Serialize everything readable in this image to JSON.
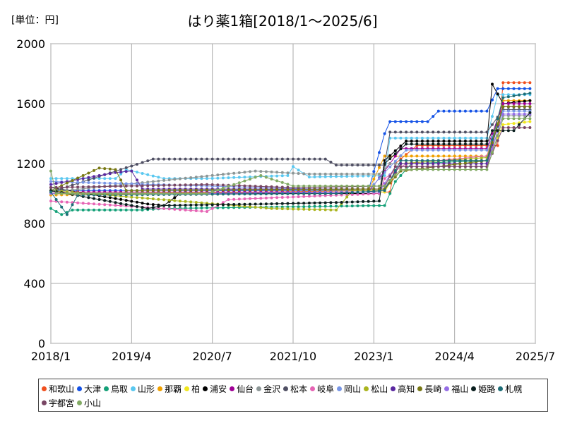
{
  "unit_label": "[単位：円]",
  "title": "はり薬1箱[2018/1～2025/6]",
  "chart_data": {
    "type": "line",
    "title": "はり薬1箱[2018/1～2025/6]",
    "x_start": "2018/1",
    "x_end": "2025/7",
    "xticks": [
      "2018/1",
      "2019/4",
      "2020/7",
      "2021/10",
      "2023/1",
      "2024/4",
      "2025/7"
    ],
    "ylim": [
      0,
      2000
    ],
    "yticks": [
      0,
      400,
      800,
      1200,
      1600,
      2000
    ],
    "grid": true,
    "legend_position": "bottom",
    "series": [
      {
        "name": "和歌山",
        "color": "#f0501e",
        "points": [
          [
            "2018/1",
            1000
          ],
          [
            "2023/4",
            1010
          ],
          [
            "2023/5",
            1200
          ],
          [
            "2023/9",
            1320
          ],
          [
            "2024/12",
            1320
          ],
          [
            "2025/1",
            1740
          ],
          [
            "2025/6",
            1740
          ]
        ]
      },
      {
        "name": "大津",
        "color": "#1452e6",
        "points": [
          [
            "2018/1",
            1020
          ],
          [
            "2022/12",
            1020
          ],
          [
            "2023/3",
            1400
          ],
          [
            "2023/4",
            1480
          ],
          [
            "2023/11",
            1480
          ],
          [
            "2024/1",
            1550
          ],
          [
            "2024/10",
            1550
          ],
          [
            "2024/12",
            1700
          ],
          [
            "2025/6",
            1700
          ]
        ]
      },
      {
        "name": "鳥取",
        "color": "#14a078",
        "points": [
          [
            "2018/1",
            900
          ],
          [
            "2018/3",
            860
          ],
          [
            "2018/5",
            890
          ],
          [
            "2019/6",
            890
          ],
          [
            "2019/10",
            900
          ],
          [
            "2023/3",
            920
          ],
          [
            "2023/5",
            1080
          ],
          [
            "2023/8",
            1200
          ],
          [
            "2024/10",
            1220
          ],
          [
            "2025/1",
            1560
          ],
          [
            "2025/6",
            1560
          ]
        ]
      },
      {
        "name": "山形",
        "color": "#5ac8f0",
        "points": [
          [
            "2018/1",
            1100
          ],
          [
            "2019/1",
            1100
          ],
          [
            "2019/3",
            1160
          ],
          [
            "2019/10",
            1100
          ],
          [
            "2020/6",
            1100
          ],
          [
            "2021/9",
            1120
          ],
          [
            "2021/10",
            1180
          ],
          [
            "2022/1",
            1110
          ],
          [
            "2023/3",
            1120
          ],
          [
            "2023/4",
            1370
          ],
          [
            "2024/10",
            1370
          ],
          [
            "2024/12",
            1660
          ],
          [
            "2025/6",
            1660
          ]
        ]
      },
      {
        "name": "那覇",
        "color": "#f0a000",
        "points": [
          [
            "2018/1",
            990
          ],
          [
            "2022/12",
            1020
          ],
          [
            "2023/3",
            1250
          ],
          [
            "2024/10",
            1250
          ],
          [
            "2025/1",
            1620
          ],
          [
            "2025/6",
            1620
          ]
        ]
      },
      {
        "name": "柏",
        "color": "#f0e61e",
        "points": [
          [
            "2018/1",
            1000
          ],
          [
            "2023/3",
            1010
          ],
          [
            "2023/6",
            1200
          ],
          [
            "2024/10",
            1200
          ],
          [
            "2025/1",
            1460
          ],
          [
            "2025/6",
            1480
          ]
        ]
      },
      {
        "name": "浦安",
        "color": "#000000",
        "points": [
          [
            "2018/1",
            1040
          ],
          [
            "2019/7",
            930
          ],
          [
            "2019/10",
            920
          ],
          [
            "2020/1",
            1000
          ],
          [
            "2023/2",
            1000
          ],
          [
            "2023/3",
            1220
          ],
          [
            "2023/7",
            1350
          ],
          [
            "2024/10",
            1350
          ],
          [
            "2024/11",
            1730
          ],
          [
            "2025/1",
            1600
          ],
          [
            "2025/6",
            1620
          ]
        ]
      },
      {
        "name": "仙台",
        "color": "#a00096",
        "points": [
          [
            "2018/1",
            1010
          ],
          [
            "2022/12",
            1010
          ],
          [
            "2023/3",
            1150
          ],
          [
            "2023/6",
            1300
          ],
          [
            "2024/10",
            1300
          ],
          [
            "2025/1",
            1600
          ],
          [
            "2025/6",
            1600
          ]
        ]
      },
      {
        "name": "金沢",
        "color": "#8c9696",
        "points": [
          [
            "2018/1",
            1010
          ],
          [
            "2021/3",
            1150
          ],
          [
            "2022/1",
            1130
          ],
          [
            "2023/2",
            1130
          ],
          [
            "2023/4",
            1200
          ],
          [
            "2024/10",
            1200
          ],
          [
            "2025/1",
            1520
          ],
          [
            "2025/6",
            1520
          ]
        ]
      },
      {
        "name": "松本",
        "color": "#505064",
        "points": [
          [
            "2018/1",
            1010
          ],
          [
            "2019/8",
            1230
          ],
          [
            "2022/4",
            1230
          ],
          [
            "2022/6",
            1190
          ],
          [
            "2023/3",
            1190
          ],
          [
            "2023/4",
            1410
          ],
          [
            "2024/10",
            1410
          ],
          [
            "2025/1",
            1560
          ],
          [
            "2025/6",
            1560
          ]
        ]
      },
      {
        "name": "岐阜",
        "color": "#e664b4",
        "points": [
          [
            "2018/1",
            950
          ],
          [
            "2020/6",
            880
          ],
          [
            "2020/10",
            960
          ],
          [
            "2023/2",
            1000
          ],
          [
            "2023/3",
            1100
          ],
          [
            "2023/7",
            1200
          ],
          [
            "2024/10",
            1250
          ],
          [
            "2025/1",
            1580
          ],
          [
            "2025/6",
            1580
          ]
        ]
      },
      {
        "name": "岡山",
        "color": "#7896e6",
        "points": [
          [
            "2018/1",
            1080
          ],
          [
            "2022/12",
            1020
          ],
          [
            "2023/3",
            1140
          ],
          [
            "2023/7",
            1290
          ],
          [
            "2024/10",
            1290
          ],
          [
            "2025/1",
            1550
          ],
          [
            "2025/6",
            1550
          ]
        ]
      },
      {
        "name": "松山",
        "color": "#aab41e",
        "points": [
          [
            "2018/1",
            1020
          ],
          [
            "2021/6",
            900
          ],
          [
            "2022/6",
            890
          ],
          [
            "2022/9",
            1020
          ],
          [
            "2023/3",
            1020
          ],
          [
            "2023/6",
            1200
          ],
          [
            "2024/10",
            1240
          ],
          [
            "2025/1",
            1580
          ],
          [
            "2025/6",
            1580
          ]
        ]
      },
      {
        "name": "高知",
        "color": "#5a28a0",
        "points": [
          [
            "2018/1",
            1060
          ],
          [
            "2019/1",
            1140
          ],
          [
            "2019/4",
            1150
          ],
          [
            "2019/6",
            1030
          ],
          [
            "2023/3",
            1030
          ],
          [
            "2023/6",
            1200
          ],
          [
            "2024/10",
            1200
          ],
          [
            "2025/1",
            1580
          ],
          [
            "2025/6",
            1580
          ]
        ]
      },
      {
        "name": "長崎",
        "color": "#787814",
        "points": [
          [
            "2018/1",
            1020
          ],
          [
            "2018/10",
            1170
          ],
          [
            "2019/1",
            1160
          ],
          [
            "2019/3",
            1020
          ],
          [
            "2023/3",
            1030
          ],
          [
            "2023/6",
            1150
          ],
          [
            "2024/10",
            1220
          ],
          [
            "2025/1",
            1580
          ],
          [
            "2025/6",
            1580
          ]
        ]
      },
      {
        "name": "福山",
        "color": "#966ee6",
        "points": [
          [
            "2018/1",
            1000
          ],
          [
            "2020/6",
            1000
          ],
          [
            "2023/2",
            1010
          ],
          [
            "2023/5",
            1180
          ],
          [
            "2024/10",
            1180
          ],
          [
            "2025/1",
            1530
          ],
          [
            "2025/6",
            1530
          ]
        ]
      },
      {
        "name": "姫路",
        "color": "#0a1e1e",
        "points": [
          [
            "2018/1",
            1020
          ],
          [
            "2019/7",
            900
          ],
          [
            "2019/10",
            920
          ],
          [
            "2021/4",
            930
          ],
          [
            "2022/6",
            940
          ],
          [
            "2023/2",
            950
          ],
          [
            "2023/3",
            1200
          ],
          [
            "2023/7",
            1330
          ],
          [
            "2024/10",
            1330
          ],
          [
            "2024/11",
            1420
          ],
          [
            "2025/3",
            1420
          ],
          [
            "2025/6",
            1540
          ]
        ]
      },
      {
        "name": "札幌",
        "color": "#1e6e78",
        "points": [
          [
            "2018/1",
            1010
          ],
          [
            "2018/4",
            860
          ],
          [
            "2018/6",
            990
          ],
          [
            "2022/6",
            1000
          ],
          [
            "2023/3",
            1020
          ],
          [
            "2023/6",
            1220
          ],
          [
            "2024/10",
            1220
          ],
          [
            "2025/1",
            1640
          ],
          [
            "2025/6",
            1670
          ]
        ]
      },
      {
        "name": "宇都宮",
        "color": "#784664",
        "points": [
          [
            "2018/1",
            1040
          ],
          [
            "2020/6",
            1060
          ],
          [
            "2021/10",
            1040
          ],
          [
            "2023/3",
            1050
          ],
          [
            "2023/5",
            1180
          ],
          [
            "2024/10",
            1180
          ],
          [
            "2025/1",
            1440
          ],
          [
            "2025/6",
            1440
          ]
        ]
      },
      {
        "name": "小山",
        "color": "#82aa64",
        "points": [
          [
            "2018/1",
            1150
          ],
          [
            "2018/2",
            1000
          ],
          [
            "2020/6",
            1000
          ],
          [
            "2021/4",
            1120
          ],
          [
            "2021/10",
            1050
          ],
          [
            "2023/3",
            1050
          ],
          [
            "2023/6",
            1160
          ],
          [
            "2024/10",
            1160
          ],
          [
            "2025/1",
            1500
          ],
          [
            "2025/6",
            1500
          ]
        ]
      }
    ]
  }
}
